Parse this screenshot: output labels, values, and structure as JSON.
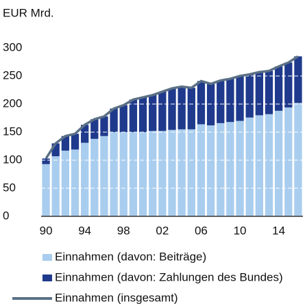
{
  "chart_data": {
    "type": "bar",
    "stacked": true,
    "title": "EUR Mrd.",
    "categories": [
      "90",
      null,
      null,
      null,
      "94",
      null,
      null,
      null,
      "98",
      null,
      null,
      null,
      "02",
      null,
      null,
      null,
      "06",
      null,
      null,
      null,
      "10",
      null,
      null,
      null,
      "14",
      null,
      null
    ],
    "series": [
      {
        "name": "Einnahmen (davon: Beiträge)",
        "color": "#a9cdee",
        "type": "bar",
        "values": [
          93,
          107,
          117,
          119,
          131,
          138,
          143,
          150,
          150,
          150,
          150,
          152,
          152,
          154,
          155,
          155,
          164,
          162,
          166,
          168,
          170,
          176,
          180,
          182,
          188,
          194,
          202
        ]
      },
      {
        "name": "Einnahmen (davon: Zahlungen des Bundes)",
        "color": "#1f3a8c",
        "type": "bar",
        "values": [
          10,
          23,
          26,
          28,
          32,
          35,
          35,
          42,
          48,
          58,
          62,
          64,
          70,
          74,
          76,
          74,
          77,
          74,
          76,
          77,
          80,
          77,
          77,
          77,
          79,
          80,
          83
        ]
      },
      {
        "name": "Einnahmen (insgesamt)",
        "color": "#5b7085",
        "type": "line",
        "values": [
          103,
          130,
          143,
          147,
          163,
          173,
          178,
          192,
          198,
          208,
          212,
          216,
          222,
          228,
          231,
          229,
          241,
          236,
          242,
          245,
          250,
          253,
          257,
          259,
          267,
          274,
          285
        ]
      }
    ],
    "ylim": [
      0,
      300
    ],
    "yticks": [
      0,
      50,
      100,
      150,
      200,
      250,
      300
    ],
    "grid": true
  }
}
